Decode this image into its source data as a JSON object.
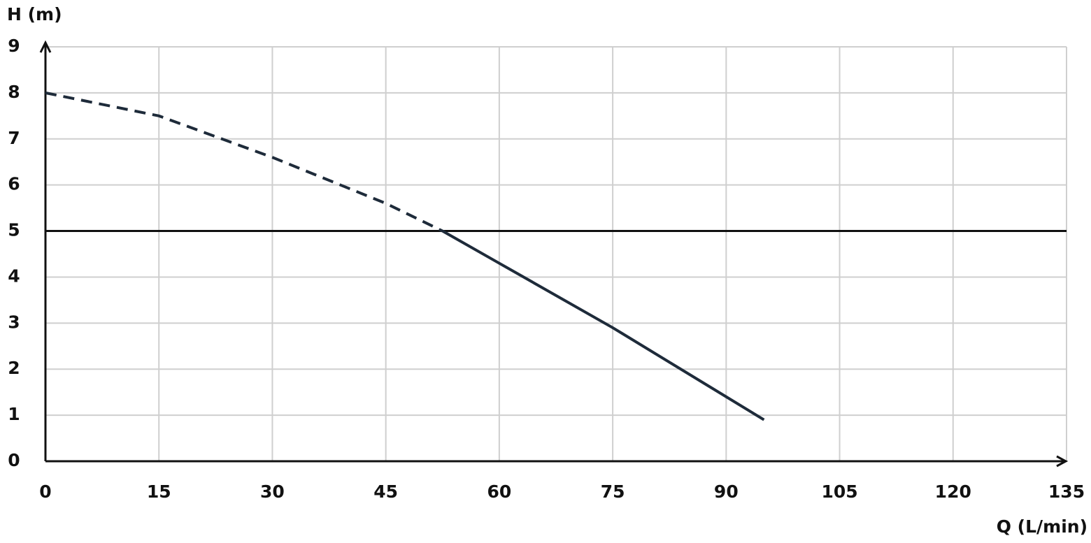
{
  "chart_data": {
    "type": "line",
    "x_label": "Q (L/min)",
    "y_label": "H (m)",
    "x": [
      0,
      15,
      30,
      45,
      52.5,
      60,
      75,
      95
    ],
    "series": [
      {
        "color": "#1e2b3a",
        "dashed": true,
        "values": [
          8,
          7.5,
          6.6,
          5.6,
          5,
          null,
          null,
          null
        ]
      },
      {
        "color": "#1e2b3a",
        "dashed": false,
        "values": [
          null,
          null,
          null,
          null,
          5,
          4.3,
          2.9,
          0.9
        ]
      }
    ],
    "hline": 5,
    "xlim": [
      0,
      135
    ],
    "xticks": [
      0,
      15,
      30,
      45,
      60,
      75,
      90,
      105,
      120,
      135
    ],
    "ylim": [
      0,
      9
    ],
    "yticks": [
      0,
      1,
      2,
      3,
      4,
      5,
      6,
      7,
      8,
      9
    ],
    "grid": true
  }
}
